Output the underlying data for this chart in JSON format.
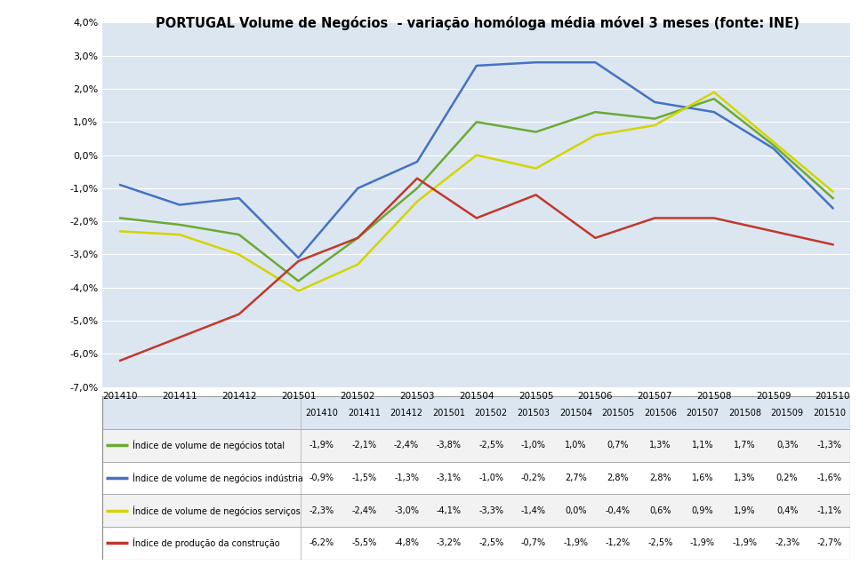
{
  "title": "PORTUGAL Volume de Negócios  - variação homóloga média móvel 3 meses (fonte: INE)",
  "categories": [
    "201410",
    "201411",
    "201412",
    "201501",
    "201502",
    "201503",
    "201504",
    "201505",
    "201506",
    "201507",
    "201508",
    "201509",
    "201510"
  ],
  "series": [
    {
      "key": "total",
      "label": "Índice de volume de negócios total",
      "color": "#6aaa35",
      "values": [
        -1.9,
        -2.1,
        -2.4,
        -3.8,
        -2.5,
        -1.0,
        1.0,
        0.7,
        1.3,
        1.1,
        1.7,
        0.3,
        -1.3
      ]
    },
    {
      "key": "industria",
      "label": "Índice de volume de negócios indústria",
      "color": "#4472c4",
      "values": [
        -0.9,
        -1.5,
        -1.3,
        -3.1,
        -1.0,
        -0.2,
        2.7,
        2.8,
        2.8,
        1.6,
        1.3,
        0.2,
        -1.6
      ]
    },
    {
      "key": "servicos",
      "label": "Índice de volume de negócios serviços",
      "color": "#d4d400",
      "values": [
        -2.3,
        -2.4,
        -3.0,
        -4.1,
        -3.3,
        -1.4,
        0.0,
        -0.4,
        0.6,
        0.9,
        1.9,
        0.4,
        -1.1
      ]
    },
    {
      "key": "construcao",
      "label": "Índice de produção da construção",
      "color": "#c0392b",
      "values": [
        -6.2,
        -5.5,
        -4.8,
        -3.2,
        -2.5,
        -0.7,
        -1.9,
        -1.2,
        -2.5,
        -1.9,
        -1.9,
        -2.3,
        -2.7
      ]
    }
  ],
  "ylim": [
    -7.0,
    4.0
  ],
  "yticks": [
    -7.0,
    -6.0,
    -5.0,
    -4.0,
    -3.0,
    -2.0,
    -1.0,
    0.0,
    1.0,
    2.0,
    3.0,
    4.0
  ],
  "ytick_labels": [
    "-7,0%",
    "-6,0%",
    "-5,0%",
    "-4,0%",
    "-3,0%",
    "-2,0%",
    "-1,0%",
    "0,0%",
    "1,0%",
    "2,0%",
    "3,0%",
    "4,0%"
  ],
  "bg_color": "#dce6f1",
  "row_colors": [
    "#f2f2f2",
    "#ffffff",
    "#f2f2f2",
    "#ffffff"
  ],
  "header_bg": "#dce6f1"
}
